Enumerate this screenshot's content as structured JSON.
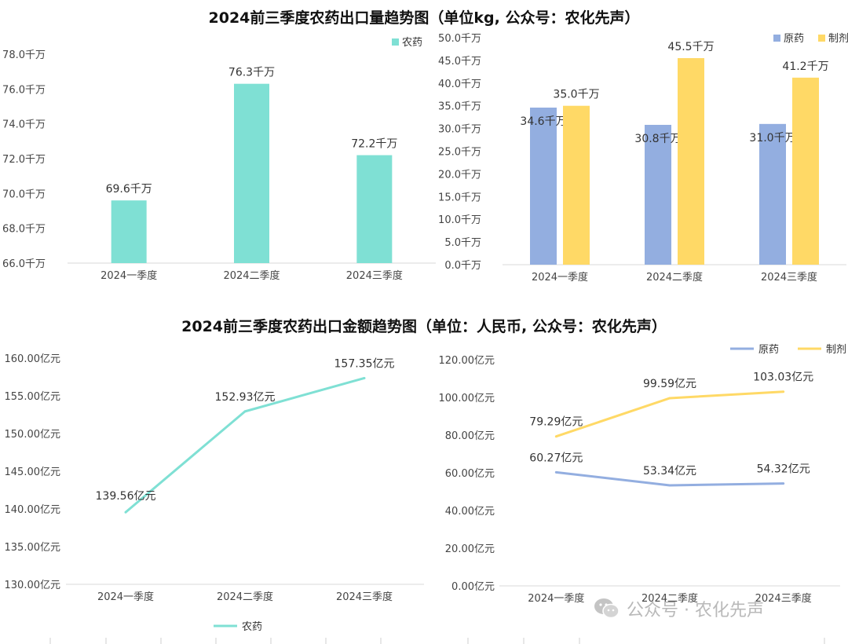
{
  "titles": {
    "top": "2024前三季度农药出口量趋势图（单位kg, 公众号：农化先声）",
    "bottom": "2024前三季度农药出口金额趋势图（单位：人民币, 公众号：农化先声）"
  },
  "watermark": {
    "text": "公众号 · 农化先声",
    "icon": "wechat-icon"
  },
  "chart_data": [
    {
      "type": "bar",
      "categories": [
        "2024一季度",
        "2024二季度",
        "2024三季度"
      ],
      "series": [
        {
          "name": "农药",
          "values": [
            69.6,
            76.3,
            72.2
          ],
          "color": "#7fe0d4"
        }
      ],
      "data_labels": [
        "69.6千万",
        "76.3千万",
        "72.2千万"
      ],
      "ylim": [
        66,
        78
      ],
      "y_ticks": [
        66,
        68,
        70,
        72,
        74,
        76,
        78
      ],
      "y_tick_labels": [
        "66.0千万",
        "68.0千万",
        "70.0千万",
        "72.0千万",
        "74.0千万",
        "76.0千万",
        "78.0千万"
      ],
      "legend": "top-right",
      "grid": false
    },
    {
      "type": "bar",
      "categories": [
        "2024一季度",
        "2024二季度",
        "2024三季度"
      ],
      "series": [
        {
          "name": "原药",
          "values": [
            34.6,
            30.8,
            31.0
          ],
          "color": "#93aee0"
        },
        {
          "name": "制剂",
          "values": [
            35.0,
            45.5,
            41.2
          ],
          "color": "#ffd966"
        }
      ],
      "data_labels": [
        [
          "34.6千万",
          "30.8千万",
          "31.0千万"
        ],
        [
          "35.0千万",
          "45.5千万",
          "41.2千万"
        ]
      ],
      "ylim": [
        0,
        50
      ],
      "y_ticks": [
        0,
        5,
        10,
        15,
        20,
        25,
        30,
        35,
        40,
        45,
        50
      ],
      "y_tick_labels": [
        "0.0千万",
        "5.0千万",
        "10.0千万",
        "15.0千万",
        "20.0千万",
        "25.0千万",
        "30.0千万",
        "35.0千万",
        "40.0千万",
        "45.0千万",
        "50.0千万"
      ],
      "legend": "top-right",
      "grid": false
    },
    {
      "type": "line",
      "categories": [
        "2024一季度",
        "2024二季度",
        "2024三季度"
      ],
      "series": [
        {
          "name": "农药",
          "values": [
            139.56,
            152.93,
            157.35
          ],
          "color": "#7fe0d4"
        }
      ],
      "data_labels": [
        "139.56亿元",
        "152.93亿元",
        "157.35亿元"
      ],
      "ylim": [
        130,
        160
      ],
      "y_ticks": [
        130,
        135,
        140,
        145,
        150,
        155,
        160
      ],
      "y_tick_labels": [
        "130.00亿元",
        "135.00亿元",
        "140.00亿元",
        "145.00亿元",
        "150.00亿元",
        "155.00亿元",
        "160.00亿元"
      ],
      "legend": "bottom",
      "grid": false
    },
    {
      "type": "line",
      "categories": [
        "2024一季度",
        "2024二季度",
        "2024三季度"
      ],
      "series": [
        {
          "name": "原药",
          "values": [
            60.27,
            53.34,
            54.32
          ],
          "color": "#93aee0"
        },
        {
          "name": "制剂",
          "values": [
            79.29,
            99.59,
            103.03
          ],
          "color": "#ffd966"
        }
      ],
      "data_labels": [
        [
          "60.27亿元",
          "53.34亿元",
          "54.32亿元"
        ],
        [
          "79.29亿元",
          "99.59亿元",
          "103.03亿元"
        ]
      ],
      "ylim": [
        0,
        120
      ],
      "y_ticks": [
        0,
        20,
        40,
        60,
        80,
        100,
        120
      ],
      "y_tick_labels": [
        "0.00亿元",
        "20.00亿元",
        "40.00亿元",
        "60.00亿元",
        "80.00亿元",
        "100.00亿元",
        "120.00亿元"
      ],
      "legend": "top-right",
      "grid": false
    }
  ]
}
